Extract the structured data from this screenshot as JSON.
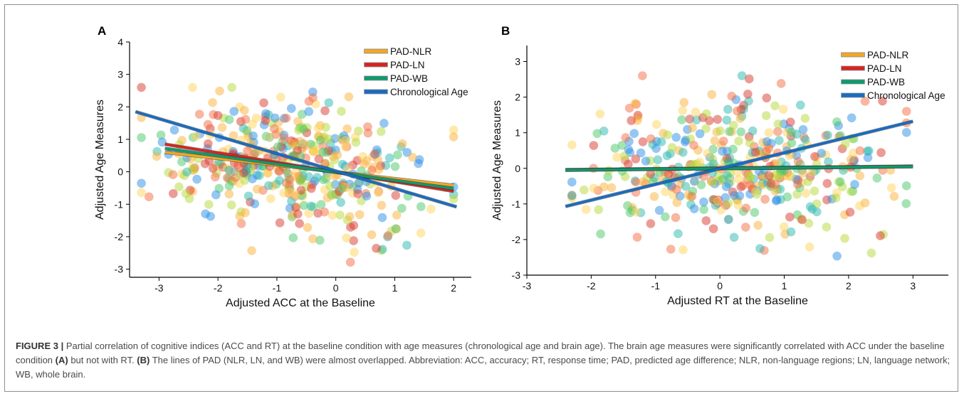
{
  "caption": {
    "lead": "FIGURE 3 |",
    "s1": " Partial correlation of cognitive indices (ACC and RT) at the baseline condition with age measures (chronological age and brain age). The brain age measures were significantly correlated with ACC under the baseline condition ",
    "b1": "(A)",
    "s2": " but not with RT. ",
    "b2": "(B)",
    "s3": " The lines of PAD (NLR, LN, and WB) were almost overlapped. Abbreviation: ACC, accuracy; RT, response time; PAD, predicted age difference; NLR, non-language regions; LN, language network; WB, whole brain."
  },
  "colors": {
    "PAD-NLR": "#f5a623",
    "PAD-LN": "#d7241f",
    "PAD-WB": "#119a6a",
    "Chronological Age": "#1a6bbd",
    "scatter_palette": [
      "#2c8fe6",
      "#2bb8b0",
      "#4cc76a",
      "#b5d93a",
      "#ffd35a",
      "#fbb13c",
      "#f46d43",
      "#d93a2e"
    ]
  },
  "chart_data": [
    {
      "panel_label": "A",
      "type": "scatter",
      "xlabel": "Adjusted ACC at the Baseline",
      "ylabel": "Adjusted Age Measures",
      "xlim": [
        -3.5,
        2.3
      ],
      "ylim": [
        -3.25,
        4
      ],
      "xticks": [
        -3,
        -2,
        -1,
        0,
        1,
        2
      ],
      "yticks": [
        -3,
        -2,
        -1,
        0,
        1,
        2,
        3,
        4
      ],
      "legend": {
        "position": "top-right",
        "entries": [
          "PAD-NLR",
          "PAD-LN",
          "PAD-WB",
          "Chronological Age"
        ]
      },
      "fit_lines": [
        {
          "name": "PAD-NLR",
          "x": [
            -2.9,
            2.0
          ],
          "y": [
            0.6,
            -0.42
          ]
        },
        {
          "name": "PAD-LN",
          "x": [
            -2.9,
            2.0
          ],
          "y": [
            0.85,
            -0.6
          ]
        },
        {
          "name": "PAD-WB",
          "x": [
            -2.9,
            2.0
          ],
          "y": [
            0.72,
            -0.52
          ]
        },
        {
          "name": "Chronological Age",
          "x": [
            -3.4,
            2.05
          ],
          "y": [
            1.85,
            -1.08
          ]
        }
      ],
      "scatter": {
        "n": 440,
        "x_range": [
          -3.3,
          2.0
        ],
        "y_range": [
          -2.8,
          2.6
        ],
        "slope": -0.3,
        "sd": 0.95,
        "seed": 11
      }
    },
    {
      "panel_label": "B",
      "type": "scatter",
      "xlabel": "Adjusted RT at the Baseline",
      "ylabel": "Adjusted Age Measures",
      "xlim": [
        -3,
        3.55
      ],
      "ylim": [
        -3,
        3.45
      ],
      "xticks": [
        -3,
        -2,
        -1,
        0,
        1,
        2,
        3
      ],
      "yticks": [
        -3,
        -2,
        -1,
        0,
        1,
        2,
        3
      ],
      "legend": {
        "position": "top-right",
        "entries": [
          "PAD-NLR",
          "PAD-LN",
          "PAD-WB",
          "Chronological Age"
        ]
      },
      "fit_lines": [
        {
          "name": "PAD-NLR",
          "x": [
            -2.4,
            3.0
          ],
          "y": [
            -0.04,
            0.06
          ]
        },
        {
          "name": "PAD-LN",
          "x": [
            -2.4,
            3.0
          ],
          "y": [
            -0.05,
            0.05
          ]
        },
        {
          "name": "PAD-WB",
          "x": [
            -2.4,
            3.0
          ],
          "y": [
            -0.05,
            0.05
          ]
        },
        {
          "name": "Chronological Age",
          "x": [
            -2.4,
            3.0
          ],
          "y": [
            -1.07,
            1.32
          ]
        }
      ],
      "scatter": {
        "n": 440,
        "x_range": [
          -2.3,
          2.9
        ],
        "y_range": [
          -2.9,
          2.6
        ],
        "slope": 0.05,
        "sd": 1.0,
        "seed": 29
      }
    }
  ]
}
